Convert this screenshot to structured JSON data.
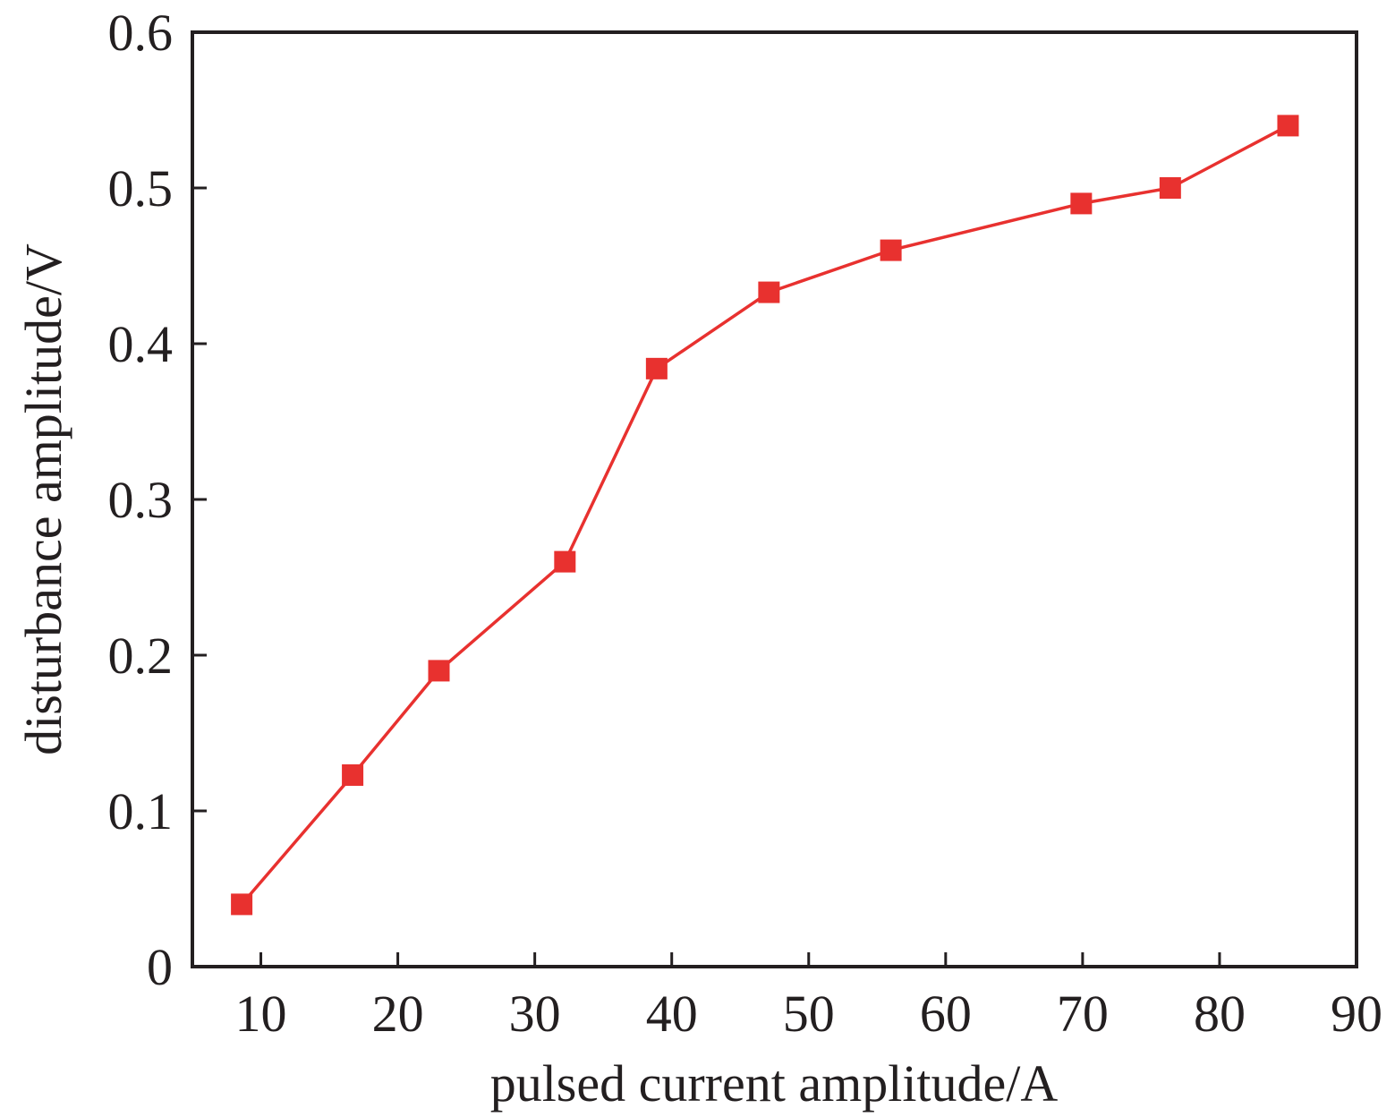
{
  "chart_data": {
    "type": "line",
    "title": "",
    "xlabel": "pulsed current amplitude/A",
    "ylabel": "disturbance amplitude/V",
    "xlim": [
      5,
      90
    ],
    "ylim": [
      0,
      0.6
    ],
    "xticks": [
      10,
      20,
      30,
      40,
      50,
      60,
      70,
      80,
      90
    ],
    "xtick_labels": [
      "10",
      "20",
      "30",
      "40",
      "50",
      "60",
      "70",
      "80",
      "90"
    ],
    "yticks": [
      0,
      0.1,
      0.2,
      0.3,
      0.4,
      0.5,
      0.6
    ],
    "ytick_labels": [
      "0",
      "0.1",
      "0.2",
      "0.3",
      "0.4",
      "0.5",
      "0.6"
    ],
    "grid": false,
    "legend": "none",
    "marker": "square",
    "color": "#e8312f",
    "series": [
      {
        "x": [
          8.6,
          16.7,
          23.0,
          32.2,
          38.9,
          47.1,
          56.0,
          69.9,
          76.4,
          85.0
        ],
        "y": [
          0.04,
          0.123,
          0.19,
          0.26,
          0.384,
          0.433,
          0.46,
          0.49,
          0.5,
          0.54
        ]
      }
    ]
  }
}
